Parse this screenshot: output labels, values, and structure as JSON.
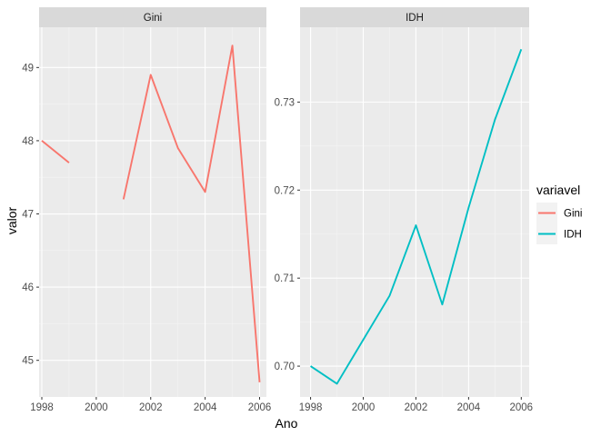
{
  "chart_data": [
    {
      "type": "line",
      "facet": "Gini",
      "xlabel": "Ano",
      "ylabel": "valor",
      "xlim": [
        1997.9,
        2006.25
      ],
      "ylim": [
        44.5,
        49.55
      ],
      "x_ticks": [
        1998,
        2000,
        2002,
        2004,
        2006
      ],
      "y_ticks": [
        45,
        46,
        47,
        48,
        49
      ],
      "series": [
        {
          "name": "Gini",
          "color": "#F8766D",
          "x": [
            1998,
            1999,
            2000,
            2001,
            2002,
            2003,
            2004,
            2005,
            2006
          ],
          "y": [
            48.0,
            47.7,
            null,
            47.2,
            48.9,
            47.9,
            47.3,
            49.3,
            44.7
          ]
        }
      ]
    },
    {
      "type": "line",
      "facet": "IDH",
      "xlabel": "Ano",
      "ylabel": "valor",
      "xlim": [
        1997.6,
        2006.3
      ],
      "ylim": [
        0.6965,
        0.7385
      ],
      "x_ticks": [
        1998,
        2000,
        2002,
        2004,
        2006
      ],
      "y_ticks": [
        0.7,
        0.71,
        0.72,
        0.73
      ],
      "y_tick_labels": [
        "0.70",
        "0.71",
        "0.72",
        "0.73"
      ],
      "series": [
        {
          "name": "IDH",
          "color": "#00BFC4",
          "x": [
            1998,
            1999,
            2000,
            2001,
            2002,
            2003,
            2004,
            2005,
            2006
          ],
          "y": [
            0.7,
            0.698,
            0.703,
            0.708,
            0.716,
            0.707,
            0.718,
            0.728,
            0.736
          ]
        }
      ]
    }
  ],
  "legend": {
    "title": "variavel",
    "position": "right",
    "entries": [
      {
        "label": "Gini",
        "color": "#F8766D"
      },
      {
        "label": "IDH",
        "color": "#00BFC4"
      }
    ]
  },
  "xlabel": "Ano",
  "ylabel": "valor",
  "theme": {
    "panel_bg": "#EBEBEB",
    "strip_bg": "#D9D9D9",
    "grid_major": "#FFFFFF",
    "grid_minor": "#F4F4F4"
  }
}
